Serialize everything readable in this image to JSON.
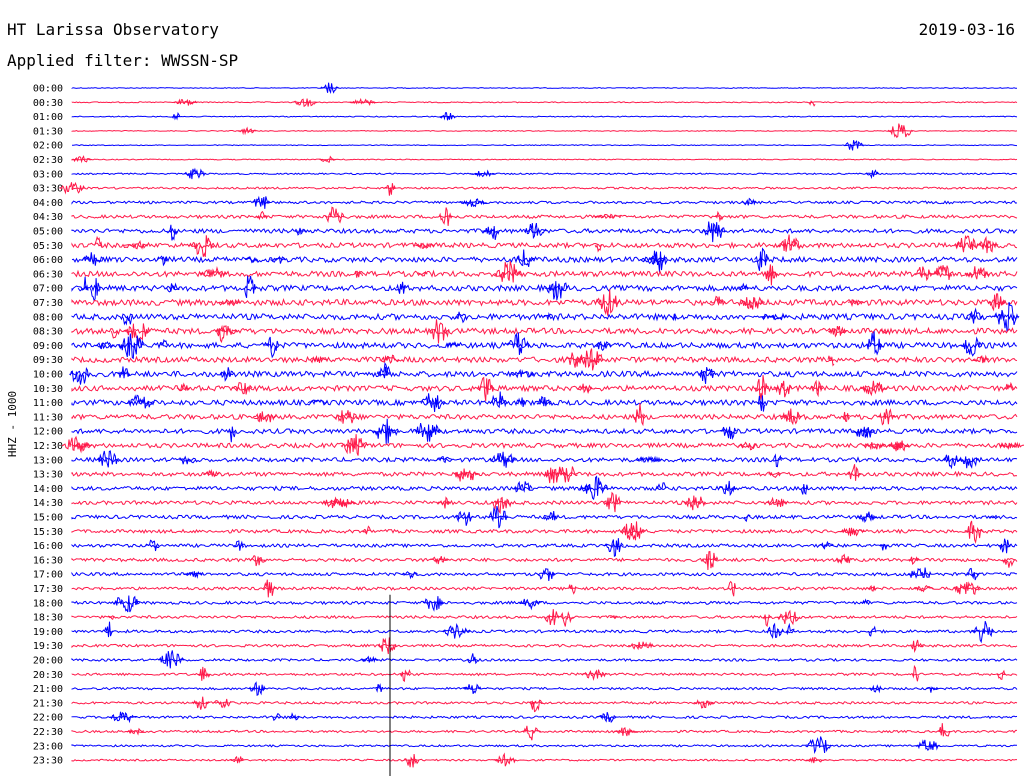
{
  "header": {
    "station": "HT Larissa Observatory",
    "date": "2019-03-16",
    "filter": "Applied filter: WWSSN-SP"
  },
  "axis_label": "HHZ - 1000",
  "colors": {
    "even_row": "#0000ff",
    "odd_row": "#ff1a4a",
    "marker": "#000000"
  },
  "chart_data": {
    "type": "line",
    "title": "",
    "ylabel": "HHZ - 1000",
    "grid": false,
    "rows": [
      "00:00",
      "00:30",
      "01:00",
      "01:30",
      "02:00",
      "02:30",
      "03:00",
      "03:30",
      "04:00",
      "04:30",
      "05:00",
      "05:30",
      "06:00",
      "06:30",
      "07:00",
      "07:30",
      "08:00",
      "08:30",
      "09:00",
      "09:30",
      "10:00",
      "10:30",
      "11:00",
      "11:30",
      "12:00",
      "12:30",
      "13:00",
      "13:30",
      "14:00",
      "14:30",
      "15:00",
      "15:30",
      "16:00",
      "16:30",
      "17:00",
      "17:30",
      "18:00",
      "18:30",
      "19:00",
      "19:30",
      "20:00",
      "20:30",
      "21:00",
      "21:30",
      "22:00",
      "22:30",
      "23:00",
      "23:30"
    ],
    "noise_level": [
      0.5,
      0.6,
      0.6,
      0.5,
      0.5,
      0.6,
      0.9,
      1.2,
      1.6,
      2.0,
      2.6,
      3.0,
      3.2,
      3.3,
      3.4,
      3.6,
      3.6,
      3.5,
      3.4,
      3.3,
      3.4,
      3.3,
      3.2,
      3.0,
      2.9,
      2.8,
      2.6,
      2.5,
      2.4,
      2.3,
      2.2,
      2.1,
      2.0,
      2.0,
      1.9,
      1.8,
      1.8,
      1.7,
      1.7,
      1.6,
      1.5,
      1.5,
      1.4,
      1.5,
      1.5,
      1.4,
      1.2,
      1.1
    ]
  }
}
